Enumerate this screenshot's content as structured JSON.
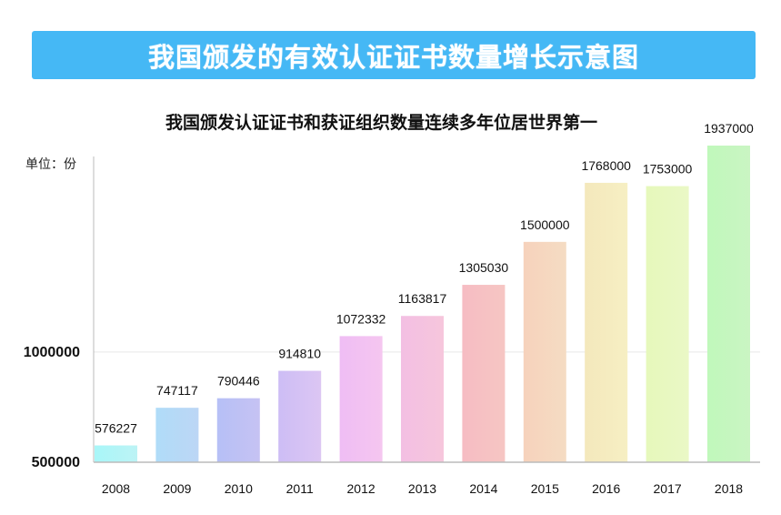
{
  "banner_title": "我国颁发的有效认证证书数量增长示意图",
  "chart_data": {
    "type": "bar",
    "title": "我国颁发认证证书和获证组织数量连续多年位居世界第一",
    "unit_label": "单位：份",
    "xlabel": "",
    "ylabel": "",
    "categories": [
      "2008",
      "2009",
      "2010",
      "2011",
      "2012",
      "2013",
      "2014",
      "2015",
      "2016",
      "2017",
      "2018"
    ],
    "values": [
      576227,
      747117,
      790446,
      914810,
      1072332,
      1163817,
      1305030,
      1500000,
      1768000,
      1753000,
      1937000
    ],
    "value_labels": [
      "576227",
      "747117",
      "790446",
      "914810",
      "1072332",
      "1163817",
      "1305030",
      "1500000",
      "1768000",
      "1753000",
      "1937000"
    ],
    "ylim": [
      500000,
      1937000
    ],
    "yticks": [
      {
        "value": 500000,
        "label": "500000"
      },
      {
        "value": 1000000,
        "label": "1000000"
      }
    ],
    "grid": true,
    "colors": [
      [
        "#a8f6f8",
        "#bdf3f5"
      ],
      [
        "#b0dcf8",
        "#bcd6f5"
      ],
      [
        "#b6c0f6",
        "#c6c2f3"
      ],
      [
        "#cdbdf5",
        "#dcc6f3"
      ],
      [
        "#efbdf4",
        "#f5c6f0"
      ],
      [
        "#f3bfe3",
        "#f6c6dc"
      ],
      [
        "#f6bcc3",
        "#f6c6c3"
      ],
      [
        "#f6d2bc",
        "#f5dcc3"
      ],
      [
        "#f4e8bc",
        "#f6efc3"
      ],
      [
        "#e6f8bb",
        "#eaf8c6"
      ],
      [
        "#c0f8bb",
        "#caf5c3"
      ]
    ]
  }
}
